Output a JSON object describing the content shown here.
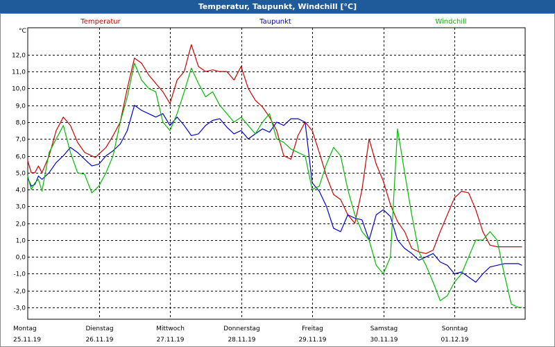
{
  "chart_data": {
    "type": "line",
    "title": "Temperatur, Taupunkt, Windchill [°C]",
    "ylabel": "°C",
    "ylim": [
      -3.7,
      13.6
    ],
    "yticks": [
      12.0,
      11.0,
      10.0,
      9.0,
      8.0,
      7.0,
      6.0,
      5.0,
      4.0,
      3.0,
      2.0,
      1.0,
      0.0,
      -1.0,
      -2.0,
      -3.0
    ],
    "ytick_labels": [
      "12,0",
      "11,0",
      "10,0",
      "9,0",
      "8,0",
      "7,0",
      "6,0",
      "5,0",
      "4,0",
      "3,0",
      "2,0",
      "1,0",
      "0,0",
      "-1,0",
      "-2,0",
      "-3,0"
    ],
    "xlim": [
      0,
      7
    ],
    "x_days": [
      {
        "day": "Montag",
        "date": "25.11.19"
      },
      {
        "day": "Dienstag",
        "date": "26.11.19"
      },
      {
        "day": "Mittwoch",
        "date": "27.11.19"
      },
      {
        "day": "Donnerstag",
        "date": "28.11.19"
      },
      {
        "day": "Freitag",
        "date": "29.11.19"
      },
      {
        "day": "Samstag",
        "date": "30.11.19"
      },
      {
        "day": "Sonntag",
        "date": "01.12.19"
      }
    ],
    "grid": true,
    "series": [
      {
        "name": "Temperatur",
        "color": "#cc0000",
        "x": [
          0,
          0.05,
          0.1,
          0.15,
          0.2,
          0.3,
          0.4,
          0.5,
          0.6,
          0.7,
          0.8,
          0.9,
          0.95,
          1.0,
          1.1,
          1.2,
          1.3,
          1.4,
          1.5,
          1.6,
          1.7,
          1.8,
          1.9,
          2.0,
          2.1,
          2.2,
          2.3,
          2.4,
          2.5,
          2.6,
          2.7,
          2.8,
          2.9,
          3.0,
          3.1,
          3.2,
          3.3,
          3.4,
          3.5,
          3.6,
          3.7,
          3.8,
          3.9,
          4.0,
          4.1,
          4.2,
          4.3,
          4.4,
          4.5,
          4.6,
          4.7,
          4.8,
          4.9,
          5.0,
          5.1,
          5.2,
          5.3,
          5.4,
          5.5,
          5.6,
          5.7,
          5.8,
          5.9,
          6.0,
          6.1,
          6.2,
          6.3,
          6.4,
          6.5,
          6.6,
          6.7,
          6.8,
          6.9,
          6.95
        ],
        "values": [
          5.7,
          5.0,
          5.0,
          5.4,
          5.0,
          6.0,
          7.5,
          8.3,
          7.8,
          6.8,
          6.2,
          6.0,
          5.9,
          6.1,
          6.5,
          7.2,
          8.0,
          10.0,
          11.8,
          11.5,
          10.8,
          10.3,
          9.8,
          9.1,
          10.5,
          11.0,
          12.6,
          11.3,
          11.0,
          11.1,
          11.0,
          11.0,
          10.5,
          11.3,
          10.0,
          9.3,
          8.9,
          8.3,
          7.5,
          6.0,
          5.8,
          7.2,
          8.0,
          7.5,
          6.2,
          4.8,
          3.7,
          3.4,
          2.5,
          2.0,
          4.0,
          7.0,
          5.5,
          4.5,
          3.1,
          2.1,
          1.5,
          0.5,
          0.3,
          0.2,
          0.4,
          1.5,
          2.5,
          3.5,
          3.9,
          3.8,
          2.8,
          1.5,
          0.7,
          0.6,
          0.6,
          0.6,
          0.6,
          0.6
        ]
      },
      {
        "name": "Taupunkt",
        "color": "#0000cc",
        "x": [
          0,
          0.05,
          0.1,
          0.15,
          0.2,
          0.3,
          0.4,
          0.5,
          0.6,
          0.7,
          0.8,
          0.9,
          1.0,
          1.1,
          1.2,
          1.3,
          1.4,
          1.5,
          1.6,
          1.7,
          1.8,
          1.9,
          2.0,
          2.1,
          2.2,
          2.3,
          2.4,
          2.5,
          2.6,
          2.7,
          2.8,
          2.9,
          3.0,
          3.1,
          3.2,
          3.3,
          3.4,
          3.5,
          3.6,
          3.7,
          3.8,
          3.9,
          4.0,
          4.1,
          4.2,
          4.3,
          4.4,
          4.5,
          4.6,
          4.7,
          4.8,
          4.9,
          5.0,
          5.1,
          5.2,
          5.3,
          5.4,
          5.5,
          5.6,
          5.7,
          5.8,
          5.9,
          6.0,
          6.1,
          6.2,
          6.3,
          6.4,
          6.5,
          6.6,
          6.7,
          6.8,
          6.9,
          6.95
        ],
        "values": [
          4.7,
          4.2,
          4.3,
          4.8,
          4.6,
          5.0,
          5.6,
          6.0,
          6.5,
          6.2,
          5.8,
          5.4,
          5.5,
          6.0,
          6.3,
          6.7,
          7.5,
          9.0,
          8.7,
          8.5,
          8.3,
          8.5,
          7.8,
          8.3,
          7.8,
          7.2,
          7.3,
          7.8,
          8.1,
          8.2,
          7.7,
          7.3,
          7.5,
          7.0,
          7.3,
          7.6,
          7.4,
          8.0,
          7.8,
          8.2,
          8.2,
          8.0,
          4.4,
          3.9,
          3.0,
          1.7,
          1.5,
          2.5,
          2.3,
          2.2,
          1.0,
          2.5,
          2.8,
          2.4,
          1.0,
          0.5,
          0.2,
          -0.2,
          0.0,
          0.2,
          -0.3,
          -0.5,
          -1.0,
          -0.9,
          -1.2,
          -1.5,
          -1.0,
          -0.6,
          -0.5,
          -0.4,
          -0.4,
          -0.4,
          -0.5
        ],
        "__x_override": [
          0,
          0.05,
          0.1,
          0.15,
          0.2,
          0.3,
          0.4,
          0.5,
          0.6,
          0.7,
          0.8,
          0.9,
          1.0,
          1.1,
          1.2,
          1.3,
          1.4,
          1.5,
          1.6,
          1.7,
          1.8,
          1.9,
          2.0,
          2.1,
          2.2,
          2.3,
          2.4,
          2.5,
          2.6,
          2.7,
          2.8,
          2.9,
          3.0,
          3.1,
          3.2,
          3.3,
          3.4,
          3.5,
          3.6,
          3.7,
          3.8,
          3.9,
          4.0,
          4.1,
          4.2,
          4.3,
          4.4,
          4.5,
          4.6,
          4.7,
          4.8,
          4.9,
          5.0,
          5.1,
          5.2,
          5.3,
          5.4,
          5.5,
          5.6,
          5.7,
          5.8,
          5.9,
          6.0,
          6.1,
          6.2,
          6.3,
          6.4,
          6.5,
          6.6,
          6.7,
          6.8,
          6.9,
          6.95
        ]
      },
      {
        "name": "Windchill",
        "color": "#00bb00",
        "x": [
          0,
          0.05,
          0.1,
          0.15,
          0.2,
          0.3,
          0.4,
          0.5,
          0.6,
          0.7,
          0.8,
          0.9,
          1.0,
          1.1,
          1.2,
          1.3,
          1.4,
          1.5,
          1.6,
          1.7,
          1.8,
          1.9,
          2.0,
          2.1,
          2.2,
          2.3,
          2.4,
          2.5,
          2.6,
          2.7,
          2.8,
          2.9,
          3.0,
          3.1,
          3.2,
          3.3,
          3.4,
          3.5,
          3.6,
          3.7,
          3.8,
          3.9,
          4.0,
          4.1,
          4.2,
          4.3,
          4.4,
          4.5,
          4.6,
          4.7,
          4.8,
          4.9,
          5.0,
          5.1,
          5.2,
          5.3,
          5.4,
          5.5,
          5.6,
          5.7,
          5.8,
          5.9,
          6.0,
          6.1,
          6.2,
          6.3,
          6.4,
          6.5,
          6.6,
          6.7,
          6.8,
          6.9,
          6.95
        ],
        "values": [
          4.8,
          4.0,
          4.4,
          4.6,
          3.9,
          6.2,
          7.0,
          7.8,
          6.2,
          5.0,
          4.9,
          3.8,
          4.2,
          5.0,
          6.0,
          8.0,
          9.5,
          11.5,
          10.5,
          10.0,
          9.8,
          8.0,
          7.5,
          8.5,
          9.8,
          11.2,
          10.3,
          9.5,
          9.8,
          9.0,
          8.5,
          8.0,
          8.3,
          7.8,
          7.3,
          8.0,
          8.5,
          7.0,
          6.8,
          6.4,
          6.2,
          6.0,
          4.0,
          4.2,
          5.5,
          6.5,
          6.0,
          4.0,
          2.5,
          1.5,
          1.0,
          -0.5,
          -1.0,
          0.0,
          7.6,
          5.0,
          2.5,
          0.3,
          -0.5,
          -1.5,
          -2.6,
          -2.3,
          -1.5,
          -1.0,
          0.0,
          1.0,
          1.0,
          1.5,
          1.0,
          -1.0,
          -2.8,
          -3.0,
          -3.0
        ]
      }
    ]
  }
}
